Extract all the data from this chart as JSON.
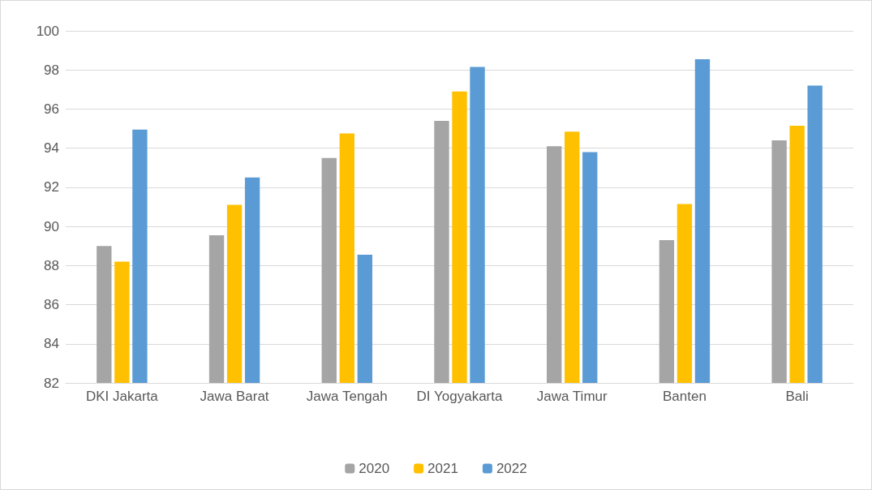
{
  "chart_data": {
    "type": "bar",
    "categories": [
      "DKI Jakarta",
      "Jawa Barat",
      "Jawa Tengah",
      "DI Yogyakarta",
      "Jawa Timur",
      "Banten",
      "Bali"
    ],
    "series": [
      {
        "name": "2020",
        "color": "#a5a5a5",
        "values": [
          89.0,
          89.55,
          93.5,
          95.4,
          94.1,
          89.3,
          94.4
        ]
      },
      {
        "name": "2021",
        "color": "#ffc000",
        "values": [
          88.2,
          91.1,
          94.75,
          96.9,
          94.85,
          91.15,
          95.15
        ]
      },
      {
        "name": "2022",
        "color": "#5b9bd5",
        "values": [
          94.95,
          92.5,
          88.55,
          98.15,
          93.8,
          98.55,
          97.2
        ]
      }
    ],
    "ylim": [
      82,
      100
    ],
    "yticks": [
      82,
      84,
      86,
      88,
      90,
      92,
      94,
      96,
      98,
      100
    ],
    "grid": "y",
    "legend": "bottom"
  }
}
